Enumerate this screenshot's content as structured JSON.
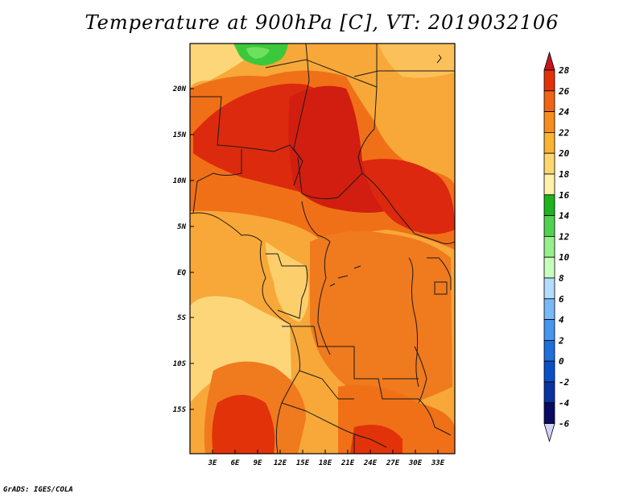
{
  "title": "Temperature at 900hPa [C], VT: 2019032106",
  "credit": "GrADS: IGES/COLA",
  "map": {
    "lat_labels": [
      "20N",
      "15N",
      "10N",
      "5N",
      "EQ",
      "5S",
      "10S",
      "15S"
    ],
    "lon_labels": [
      "3E",
      "6E",
      "9E",
      "12E",
      "15E",
      "18E",
      "21E",
      "24E",
      "27E",
      "30E",
      "33E"
    ],
    "lat_range": [
      -20,
      25
    ],
    "lon_range": [
      0,
      35
    ],
    "field": "Temperature",
    "level": "900hPa",
    "units": "C",
    "valid_time": "2019032106"
  },
  "colorbar": {
    "labels": [
      "28",
      "26",
      "24",
      "22",
      "20",
      "18",
      "16",
      "14",
      "12",
      "10",
      "8",
      "6",
      "4",
      "2",
      "0",
      "-2",
      "-4",
      "-6"
    ],
    "colors": [
      "#c8141e",
      "#e1320a",
      "#f06414",
      "#fa8c1e",
      "#fab432",
      "#ffd66e",
      "#fff0aa",
      "#1eb41e",
      "#50d250",
      "#96f08c",
      "#c8ffbe",
      "#b4dcff",
      "#78b9fa",
      "#4696f0",
      "#1e6edc",
      "#0a50c8",
      "#0a32a0",
      "#0a0a64"
    ],
    "over_color": "#c8141e",
    "under_color": "#d2d2fa"
  }
}
